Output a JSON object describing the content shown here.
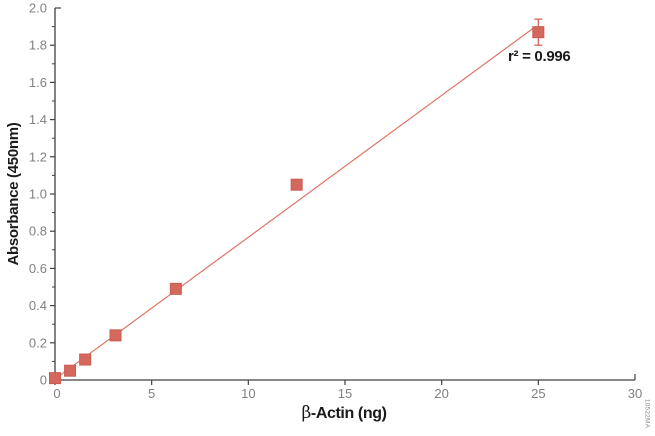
{
  "watermark": "10522MA",
  "chart_data": {
    "type": "scatter",
    "title": "",
    "xlabel_symbol": "β",
    "xlabel_rest": "-Actin (ng)",
    "ylabel": "Absorbance (450nm)",
    "annotation": "r² = 0.996",
    "xlim": [
      0,
      30
    ],
    "ylim": [
      0,
      2.0
    ],
    "grid": false,
    "legend": "none",
    "xticks": {
      "values": [
        0,
        5,
        10,
        15,
        20,
        25,
        30
      ],
      "labels": [
        "0",
        "5",
        "10",
        "15",
        "20",
        "25",
        "30"
      ]
    },
    "yticks": {
      "values": [
        0,
        0.2,
        0.4,
        0.6,
        0.8,
        1.0,
        1.2,
        1.4,
        1.6,
        1.8,
        2.0
      ],
      "labels": [
        "0",
        "0.2",
        "0.4",
        "0.6",
        "0.8",
        "1.0",
        "1.2",
        "1.4",
        "1.6",
        "1.8",
        "2.0"
      ]
    },
    "y_minor_step": 0.1,
    "points": [
      {
        "x": 0,
        "y": 0.01
      },
      {
        "x": 0.78,
        "y": 0.05
      },
      {
        "x": 1.56,
        "y": 0.11
      },
      {
        "x": 3.13,
        "y": 0.24
      },
      {
        "x": 6.25,
        "y": 0.49
      },
      {
        "x": 12.5,
        "y": 1.05
      },
      {
        "x": 25,
        "y": 1.87,
        "error": 0.07
      }
    ],
    "trendline": {
      "x1": 0,
      "y1": 0.005,
      "x2": 24.85,
      "y2": 1.9
    },
    "colors": {
      "marker": "#d5685d",
      "marker_border": "#c95b50",
      "line": "#de7568",
      "axis": "#414042",
      "tick_label": "#808184",
      "text": "#1a1a1a"
    }
  }
}
